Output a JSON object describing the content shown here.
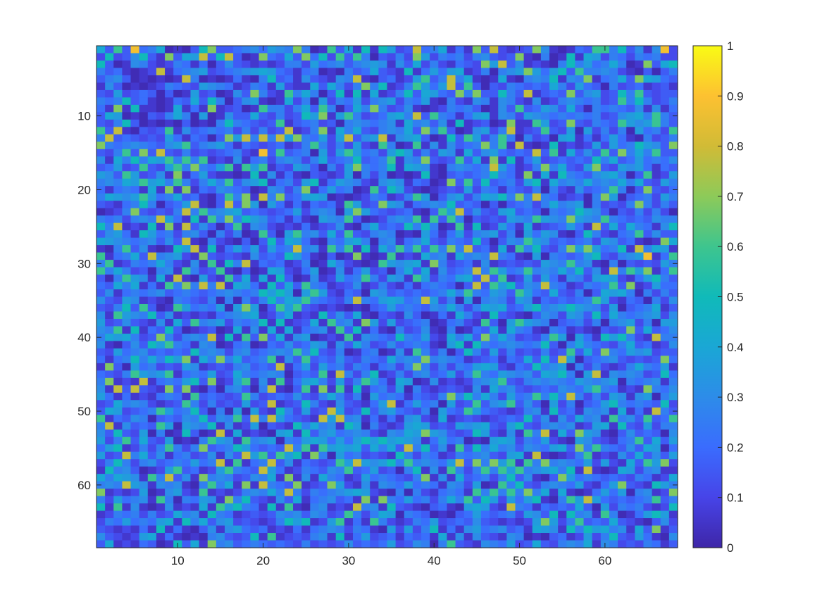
{
  "chart_data": {
    "type": "heatmap",
    "title": "",
    "xlabel": "",
    "ylabel": "",
    "rows": 68,
    "cols": 68,
    "xlim": [
      0.5,
      68.5
    ],
    "ylim": [
      0.5,
      68.5
    ],
    "y_axis_reversed": true,
    "x_ticks": [
      10,
      20,
      30,
      40,
      50,
      60
    ],
    "y_ticks": [
      10,
      20,
      30,
      40,
      50,
      60
    ],
    "x_tick_labels": [
      "10",
      "20",
      "30",
      "40",
      "50",
      "60"
    ],
    "y_tick_labels": [
      "10",
      "20",
      "30",
      "40",
      "50",
      "60"
    ],
    "grid": false,
    "colormap": "parula",
    "colorbar": {
      "location": "right",
      "limits": [
        0,
        1
      ],
      "ticks": [
        0,
        0.1,
        0.2,
        0.3,
        0.4,
        0.5,
        0.6,
        0.7,
        0.8,
        0.9,
        1
      ],
      "tick_labels": [
        "0",
        "0.1",
        "0.2",
        "0.3",
        "0.4",
        "0.5",
        "0.6",
        "0.7",
        "0.8",
        "0.9",
        "1"
      ]
    },
    "colormap_stops": [
      "#3e26a8",
      "#4744e8",
      "#3a6cfe",
      "#2d8ce9",
      "#1aa7d5",
      "#10bab9",
      "#3ec58e",
      "#8dca59",
      "#d1bb36",
      "#fdc131",
      "#f9fb15"
    ],
    "values_note": "",
    "values": [
      "4B6B92C40A0B57BB2C32D3C7C0A6B4A5A5D1B82C4A2A7B81A1B73A0A2B66C5B3A391",
      "151B35BA7B4D8B58B0A72B4B72516B6C0B1C17D1C2C1C3B1B7A0C0A5A4D1C21C2C1",
      "5B0A3C1A1C2A20B3B1A1A1CC1D2C3BC3D3A3B41C1A2B17D8B3A1A0C5CD2C4C0A7B4",
      "CB2A0A18A2C3D1B2C3D4D2BA2C0A0CB24B1A5A2D2D4A1C0C3D7D2D5B6CC3C1A0B0B",
      "BC3B0A0A0A8C0A0A2A0C5B2A3B1A3C8A0B2A1D6BC8C4A0A4A0C3C5A3C7A2C4B74D2",
      "A3B0A0A1C2B1D3C2A1C2AD1AA4B4C1C7C5A1C6D2D8B6B0B1C2B2B4C1D2B0C1B2A1B",
      "B1D1B2B0B0AD1B0A3B7C1A6C4C0B5A5A4A1C5B4D2B7C7BB5CB8AB2B7B3D1B5C6B1B",
      "C2C5B2A0A2B4B5C0B3DA0A41C0D1C2D1C3D1C2DA0C1A3CA3C1A3A1C3C2C1B6C5C1B",
      "2A7A5AA0A4A2A7A1B0A6CC1C4B6C0B4C7C1B3A0A1C2CB0A3B6B2D3B4B0C2C2B3A3A",
      "B4D0A0B1C4C0D0A3BB4B1C1B5D7AD6C1B2D4C8B6C2A2D4A3C1D3C2C2C2C1B3D4C6C",
      "B1C5B0A0A0B0A0C5C2B1B6AB2C1B0C3C2C3A4C3B3A5A1B0A7AA6D1B7B1C2B6D3D6C",
      "6B8A0B1B6A3B2C2C1C1C1B8A1C7A4C4B1C3C4B7C6B0A3D1C8A1B6B1D0D1C1C0D2C1",
      "C8B2B1B1D2A2B0B7D8C8C8D7C2D1D8B3D8A3D4B0A5B6D1C6C0C1B0D4A2A2D2A0C1B",
      "7C2C3C2B3D6BC3D2A2B1B2A1C6C1C1D1A6C0A6A3A3B2C7C6A8A0A5A1A1D1D2C5D3B",
      "B1C6B7B8B1C1B1B2C1A9B6B2C0D1D6D2C1D5D1C1D3A4B3D2B2B8B6A4B3B6B7C4C6B",
      "3A4C5C4D6C6C6A1A3A2C1C3C1C4B2C5B2C6A3C7B1B6B4A7A5A2D1B2B2B5C4B2D2C2",
      "B2D1B6B1D6C7C2D6A6D6AB1D3B0C1D7C2C5A4D3A0C3C2C8D2A1C7C4B1D7B1D3D2A2",
      "D3B6D1B3A7A2D1AA0A5A3A2A0B1A1D0C1C0A0A5A0B2B2C5C2A7A4A5C2B3D4C0B6A1",
      "C3C4D6D4C6C1C4C6B3D5A2C1D5A2D3C1A3D3A2B0A7B6B5B2C1D5A4C3C4C3C4C4B1D",
      "2A2C2A4A7A7A2B3C2B0A3C1C7A2D2C0A6B5D1A0A1B1D1C2A2B1C0C1A3B2C6C0B7B1",
      "C4D3D6D2C4B2A0B6C7A8C7B2D4D0A0A1C2A1C6D0B3D1C4D5C7C8C2A1B0C7D0B2C1D",
      "B1A2C5C0B2D8A0B8B7D0D2A2A2B2A6D1B7D3A2C3C5B2B0B0B2C1C4C3D0C1B1C7C1C",
      "0A1C7B1B1C8C6C3D4B2B1B2D1C3C0D7D2B1B2A0B6D8B3B1D4B2B0C2C5D3B0B1C1C1",
      "C2C1C3C8D2A5A6C7C5D3B2A2A0D3C6B0A1C3C6A6B6C0B1B1D3C6D3C7D3C6C2B2B3C",
      "5C8A1A5A7A8B3B0B6A3C1A1A2A1B3A0C4B2B5C5C0A6A5A1D2A4A1B2D2A8B4B4C2A3",
      "B3D2A5D2C1C3B0C1C0A6B0D6C3B4B6B1C3C0A0D2A2D1C3D1C0D2D3A0B5C1A2C6B3B",
      "4D3C2C3B3B8A0C1A0B0B5B4D2A0C2D4C0C3A2C4B1C2B5B0B3C6D3B2B2C1D3B2A0A7",
      "A0C6B3A0A5D8A5A2D2D1D2C8C3A6C6A5A4C6C6B6C7C8B2A4A6C5B1C7D7D2C5A8C4D",
      "6A2C4B8C3D1A7B1B1A3B2B5D2A0B0A7A0A6A1A4C3A4C3C8C2A0D0C2B2D5B1C3D9A2",
      "C6A1C2C4C1A3A6A5C8A2B2A1C0A4C1A0A6D3D4A7C1B2A3A1B1B1D3C6C3A0C0B1B1D",
      "6C4C1B0C3A6C1B6A0B0A4D1A2D0A3A2D1B0C4B4A3B2C8C6D2C6C3C4C5B3A8C6D7A2",
      "B0C6D3A4A8A0D1A6B4A4A5B0A3A1D2C6C1D3A6D1C2D4B8B6A1D1D2A3C1D4D1A2D5C",
      "2B4C4A2A6C7C8C8A4D2A5B4B6C2A1B3A1C1A2A2C2B0B8B6D5B3C8C2A1C2C6B7A1D2",
      "B3A2C2C3B2C2B2C3C2C5D5D0D6D1A2B0D3B2B2B2C4C6C2D3B6D2B4B1C0B4D4C0C1C",
      "3B1D3A1A0C2B1C0C0C1C5C4D6C2B1C8C2D4D2C8D1C0D0C3C1D3A2B2B2C6D1A2B0C1",
      "B1C5B6B0A6D2C2D0D7D0B6D6B1A1A0A0B2D2C2B3C4C1C4D4B2D5C3D5D3C1D0B2C4A",
      "3A6D3C5B3A1A1A2C3D4A1C4A1A5B3B4A0B1A3B0A2A4C1A5B1A0B3C1D3B5B4C2C3D1",
      "D1B3B1A3A4B6C3D1C2C5A5A1B4A6C3A7D1D1B2C0A2C1A6B0D6D3C0B2C1C0C3D1C0D",
      "3C6A5A2B5B0A1B0A4A3A4A4A2C3A6B5A2A0C1B3A0C0A2B4A4C2A0C2A1A0B1B7B4B2",
      "C4D4C1B7C1C3C8A5A6B7B4A3D0A1A6A3C2B5C2D1A4C4B7C4C1B1C6D0D2A5D5C1A8C",
      "3A0B3B5D6C2A3C0A2C0A2B3B2D3A3B4C1B3B2C2A0D5A5C2C3C2C5B0C4C2B1C4B2A1",
      "B1D2C3B2B2B5C3C1C3B2C3C6C5B1C0A2C0A3A6C1C0B5C1D1C1B1C1B6B4B7C2D3D1B",
      "2A2C5C4C5D7A4C7C4B2C6A3B6B2B3B1C2B4C3C7C3C2A1B2A2B4B5B8D0B2C3B1B1B7",
      "A7B0D2C1B1D3A1B1C3B2B8A2D1D2C1C2A2C1C7C1C1C2D4D1A2B5C3D0C1C1A1C4C2D",
      "2B1C6D3D6A2C2D1B4C2C3C0B2B6A8C1C5A1C1C3B2D1C6C2D3C3B4D5C0D8A3C3C1B5",
      "C7A1A8A2C2D5B7A1D6A3A6A2D4C1D1C6D2A4D0A3A1A1C3D6B1C3C3C2D3C3D0C2C3A",
      "3A8B8B1A7B7A0B0C3B0C8A0B6A7A6A5A2C1D0C1A1B1A3A4C3B1B2B3C2D6C2A1A7C2",
      "D2A2A1A2C2A6B2B1B6C1B2B3B1C4C1C0D2C2A2B1C7C5C4C1D2C6C5C8C1C1D3A3D0C",
      "1B4C3C1A1B6C1C1B1D1B8A1B5C1A3B1A2D8A2D2C0D1B6B3D6B3B0D1C0B2D5C2C2B5",
      "B4D1B2C6D2C5B0C0D0D1A5C1D1B8D1B5B3D2B1C0D2B6D2B1A1C3A5B2A3C3A4A2A8C",
      "6A2B3C0B2B3C5B3C6B8C8D2B1A8D8C3A2A2A3D1A4A1B1A1B2B5B3A3B4C3A6C3B6B2",
      "C8A3B2B6D0D3C5A3A1D0B1A5C4C3A5D0C1A1D4D1B1D3D4B1D5B1C3C3A1D4A5B1D1C",
      "3B5B1D0C0A5B0A8A4A1A0D4A5B3D2C3C1A3C4D7D3B1B5D1A3A6C8A4B7D3A0B3B2B0",
      "D1C6B4B1D0A0C6D3A6C3D0C2D4D2D2D5D5D4D3A2D2C0A0D4D1C2D1A0D3B1A2C6B4B",
      "2D5A1C1C6C1C7B2C5D2B2B8C6A6D4D4B4C4B8C5B3A6B5C4C3B3C2D4B7C6C2B3B4D0",
      "D1B8C4B3A2C1B3A3B8D6B6D5A7C0D2C1B1A5C1C2A1C2C3B1D4A8A0A1C6A1A3B4B3B",
      "1C5C1C3B2C2D2C8A6A2C8B3A2B1B6D8D3D5C6C3C2D8B7C7D6A6C7C3C2D1D1A4B6D7",
      "A5C3B0A1D6B2A1D6C2B8D2A1C2B3C6B2D1B0C5A3A6C1C6C6D6C3D4C5A8A0A4D1C3A",
      "4C4D3A6C8B3A7C3C1B3C4A7A3A4C2A1D2C2B1C7A3A4B2C1C5B3A0B7D2C2B2B1C2A1",
      "C3C8D3A3C3A0C6C4A7A8C2B7A1B7D1A3A3C2D2C2A3C1D0A6C5B1C3C2D1A2D7B1A5D",
      "7A1A1D0A3D1A6A1A1C3C4C8C1C2C3D4D1A0C0C1A2C2A6C6C6C7C4A4A0A2D2D0C3A1",
      "C1D2C3A6C0C2D3A7C5B1A3B4A2C3B2A7A7C2D2C1C4C6B5D1D2D5A0C6D8D2B2B2C6B",
      "5A6A3A0A3A1A4A6D5C2A5A6A0C3A1A8C3A5B1A0B2A0D4D1A8C2A2B2B4B0D1C2C1A1",
      "A1C2C1C1B4C3A5C2A1B1B3C3B3C1B6C1C4D0C2B0A0B2D2B2C1D3B5A5C3A6C0A2D5D",
      "1C2D2C2D4A5C4B3D1B1A1C5D5A1D6A2A6C1A1C2D1B2B3B1A1A1D7D1C6B2B4B1A0B3",
      "B1A1A2A5A2A0B3A3D2B2A1A2A2C3C1C2A0D1D1C5A2A3D2C3B2A4D3A5C5D4C3A4B7A",
      "3B1A1D4A2A0A0C3B1B5A6A1B1C3A5A2D1B2A2B2A4A3A3B1A3C0A0B2A1D1C5B1D2A0",
      "B4A1A2B0A5B4A7C3B2C2B2B1C1B1B3B2B2D1B3C0C6B1A3C2D1B4B1C3C4A3C1B1C2A"
    ]
  }
}
